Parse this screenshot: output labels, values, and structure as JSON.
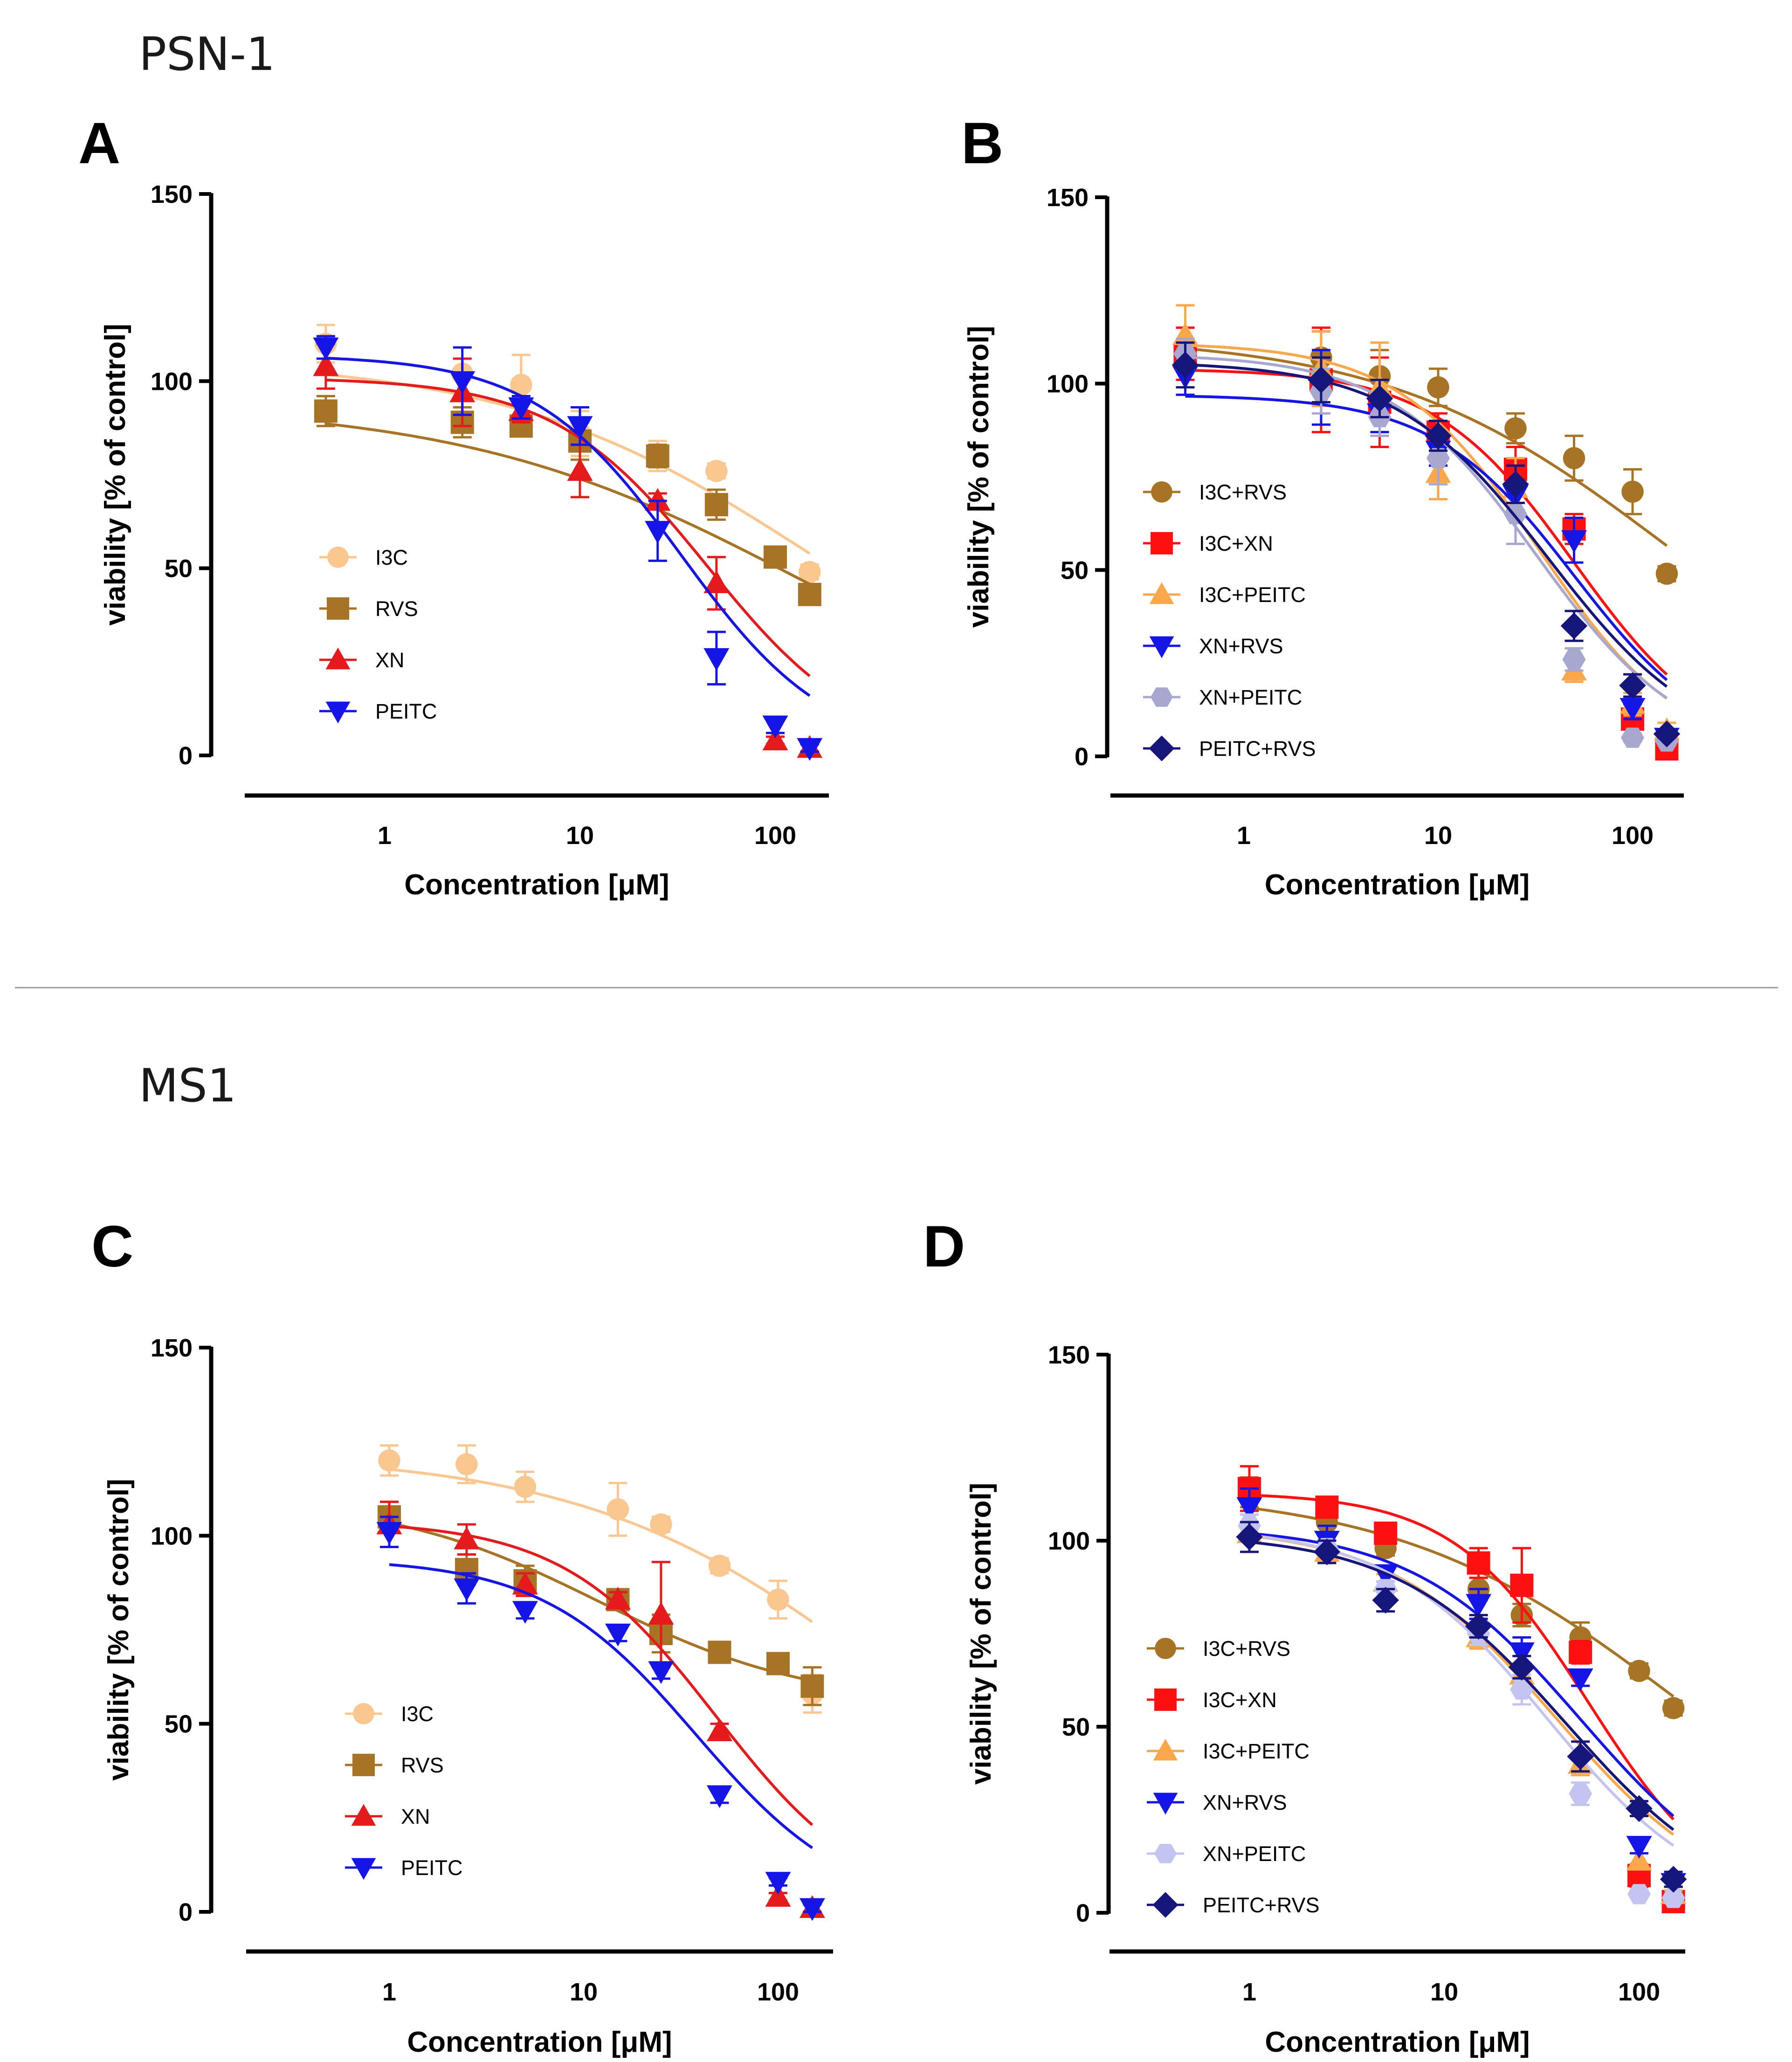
{
  "sections": [
    {
      "title": "PSN-1"
    },
    {
      "title": "MS1"
    }
  ],
  "chart_data": [
    {
      "panel": "A",
      "type": "line",
      "xscale": "log",
      "xlabel": "Concentration [μM]",
      "ylabel": "viability [% of control]",
      "ylim": [
        0,
        150
      ],
      "yticks": [
        0,
        50,
        100,
        150
      ],
      "xticks": [
        1,
        10,
        100
      ],
      "xtick_labels": [
        "1",
        "10",
        "100"
      ],
      "x": [
        0.5,
        2.5,
        5,
        10,
        25,
        50,
        100,
        150
      ],
      "legend_position": "bottom-left",
      "series": [
        {
          "name": "I3C",
          "color": "#F9C78F",
          "marker": "circle",
          "values": [
            110,
            102,
            99,
            86,
            80,
            76,
            53,
            49
          ],
          "errors": [
            5,
            7,
            8,
            6,
            4,
            2,
            2,
            2
          ],
          "fit": {
            "top": 106,
            "bottom": 0,
            "ic50": 160,
            "hill": 0.55
          }
        },
        {
          "name": "RVS",
          "color": "#A77426",
          "marker": "square",
          "values": [
            92,
            89,
            88,
            84,
            80,
            67,
            53,
            43
          ],
          "errors": [
            4,
            4,
            2,
            5,
            3,
            4,
            2,
            2
          ],
          "fit": {
            "top": 94,
            "bottom": 0,
            "ic50": 135,
            "hill": 0.5
          }
        },
        {
          "name": "XN",
          "color": "#E41A1C",
          "marker": "triangle-up",
          "values": [
            104,
            97,
            92,
            76,
            68,
            46,
            4,
            2
          ],
          "errors": [
            6,
            9,
            3,
            7,
            2,
            7,
            1,
            1
          ],
          "fit": {
            "top": 101,
            "bottom": 0,
            "ic50": 45,
            "hill": 1.1
          }
        },
        {
          "name": "PEITC",
          "color": "#1515E5",
          "marker": "triangle-down",
          "values": [
            109,
            100,
            93,
            88,
            60,
            26,
            8,
            2
          ],
          "errors": [
            3,
            9,
            3,
            5,
            8,
            7,
            2,
            1
          ],
          "fit": {
            "top": 107,
            "bottom": 0,
            "ic50": 33,
            "hill": 1.15
          }
        }
      ]
    },
    {
      "panel": "B",
      "type": "line",
      "xscale": "log",
      "xlabel": "Concentration [μM]",
      "ylabel": "viability [% of control]",
      "ylim": [
        0,
        150
      ],
      "yticks": [
        0,
        50,
        100,
        150
      ],
      "xticks": [
        1,
        10,
        100
      ],
      "xtick_labels": [
        "1",
        "10",
        "100"
      ],
      "x": [
        0.5,
        2.5,
        5,
        10,
        25,
        50,
        100,
        150
      ],
      "legend_position": "middle-left",
      "series": [
        {
          "name": "I3C+RVS",
          "color": "#A77426",
          "marker": "circle",
          "values": [
            110,
            107,
            102,
            99,
            88,
            80,
            71,
            49
          ],
          "errors": [
            5,
            7,
            7,
            5,
            4,
            6,
            6,
            2
          ],
          "fit": {
            "top": 113,
            "bottom": 0,
            "ic50": 150,
            "hill": 0.6
          }
        },
        {
          "name": "I3C+XN",
          "color": "#FF1111",
          "marker": "square",
          "values": [
            108,
            101,
            95,
            87,
            77,
            61,
            10,
            2
          ],
          "errors": [
            7,
            14,
            12,
            5,
            6,
            4,
            4,
            1
          ],
          "fit": {
            "top": 104,
            "bottom": 0,
            "ic50": 50,
            "hill": 1.2
          }
        },
        {
          "name": "I3C+PEITC",
          "color": "#FBA84C",
          "marker": "triangle-up",
          "values": [
            113,
            104,
            99,
            76,
            72,
            23,
            14,
            7
          ],
          "errors": [
            8,
            10,
            12,
            7,
            8,
            3,
            3,
            2
          ],
          "fit": {
            "top": 111,
            "bottom": 0,
            "ic50": 33,
            "hill": 1.2
          }
        },
        {
          "name": "XN+RVS",
          "color": "#1515E5",
          "marker": "triangle-down",
          "values": [
            102,
            99,
            92,
            82,
            70,
            58,
            13,
            5
          ],
          "errors": [
            5,
            10,
            5,
            4,
            4,
            6,
            3,
            1
          ],
          "fit": {
            "top": 97,
            "bottom": 0,
            "ic50": 50,
            "hill": 1.2
          }
        },
        {
          "name": "XN+PEITC",
          "color": "#A7A7D0",
          "marker": "hexagon",
          "values": [
            108,
            98,
            91,
            80,
            65,
            26,
            5,
            4
          ],
          "errors": [
            4,
            6,
            5,
            7,
            8,
            3,
            1,
            1
          ],
          "fit": {
            "top": 108,
            "bottom": 0,
            "ic50": 32,
            "hill": 1.15
          }
        },
        {
          "name": "PEITC+RVS",
          "color": "#15157A",
          "marker": "diamond",
          "values": [
            105,
            101,
            96,
            86,
            73,
            35,
            19,
            6
          ],
          "errors": [
            6,
            6,
            5,
            4,
            5,
            4,
            3,
            1
          ],
          "fit": {
            "top": 106,
            "bottom": 0,
            "ic50": 37,
            "hill": 1.1
          }
        }
      ]
    },
    {
      "panel": "C",
      "type": "line",
      "xscale": "log",
      "xlabel": "Concentration [μM]",
      "ylabel": "viability [% of control]",
      "ylim": [
        0,
        150
      ],
      "yticks": [
        0,
        50,
        100,
        150
      ],
      "xticks": [
        1,
        10,
        100
      ],
      "xtick_labels": [
        "1",
        "10",
        "100"
      ],
      "x": [
        1,
        2.5,
        5,
        15,
        25,
        50,
        100,
        150
      ],
      "legend_position": "bottom-left",
      "series": [
        {
          "name": "I3C",
          "color": "#F9C78F",
          "marker": "circle",
          "values": [
            120,
            119,
            113,
            107,
            103,
            92,
            83,
            58
          ],
          "errors": [
            4,
            5,
            4,
            7,
            2,
            2,
            5,
            5
          ],
          "fit": {
            "top": 122,
            "bottom": 0,
            "ic50": 400,
            "hill": 0.55
          }
        },
        {
          "name": "RVS",
          "color": "#A77426",
          "marker": "square",
          "values": [
            105,
            91,
            88,
            83,
            74,
            69,
            66,
            60
          ],
          "errors": [
            4,
            4,
            4,
            2,
            5,
            2,
            2,
            5
          ],
          "fit": {
            "top": 110,
            "bottom": 55,
            "ic50": 12,
            "hill": 0.8
          }
        },
        {
          "name": "XN",
          "color": "#E41A1C",
          "marker": "triangle-up",
          "values": [
            103,
            99,
            87,
            83,
            79,
            48,
            4,
            1
          ],
          "errors": [
            6,
            4,
            3,
            2,
            14,
            2,
            1,
            1
          ],
          "fit": {
            "top": 104,
            "bottom": 0,
            "ic50": 48,
            "hill": 1.1
          }
        },
        {
          "name": "PEITC",
          "color": "#1515E5",
          "marker": "triangle-down",
          "values": [
            101,
            86,
            80,
            74,
            64,
            31,
            8,
            1
          ],
          "errors": [
            4,
            4,
            2,
            2,
            2,
            2,
            1,
            1
          ],
          "fit": {
            "top": 94,
            "bottom": 0,
            "ic50": 38,
            "hill": 1.1
          }
        }
      ]
    },
    {
      "panel": "D",
      "type": "line",
      "xscale": "log",
      "xlabel": "Concentration [μM]",
      "ylabel": "viability [% of control]",
      "ylim": [
        0,
        150
      ],
      "yticks": [
        0,
        50,
        100,
        150
      ],
      "xticks": [
        1,
        10,
        100
      ],
      "xtick_labels": [
        "1",
        "10",
        "100"
      ],
      "x": [
        1,
        2.5,
        5,
        15,
        25,
        50,
        100,
        150
      ],
      "legend_position": "middle-left",
      "series": [
        {
          "name": "I3C+RVS",
          "color": "#A77426",
          "marker": "circle",
          "values": [
            113,
            105,
            98,
            87,
            80,
            74,
            65,
            55
          ],
          "errors": [
            4,
            3,
            2,
            3,
            3,
            4,
            2,
            2
          ],
          "fit": {
            "top": 114,
            "bottom": 0,
            "ic50": 160,
            "hill": 0.6
          }
        },
        {
          "name": "I3C+XN",
          "color": "#FF1111",
          "marker": "square",
          "values": [
            114,
            109,
            102,
            94,
            88,
            70,
            10,
            3
          ],
          "errors": [
            6,
            2,
            2,
            4,
            10,
            3,
            3,
            1
          ],
          "fit": {
            "top": 113,
            "bottom": 0,
            "ic50": 55,
            "hill": 1.25
          }
        },
        {
          "name": "I3C+PEITC",
          "color": "#FBA84C",
          "marker": "triangle-up",
          "values": [
            102,
            97,
            89,
            74,
            64,
            40,
            14,
            5
          ],
          "errors": [
            5,
            3,
            2,
            3,
            3,
            3,
            2,
            1
          ],
          "fit": {
            "top": 104,
            "bottom": 0,
            "ic50": 38,
            "hill": 1.0
          }
        },
        {
          "name": "XN+RVS",
          "color": "#1515E5",
          "marker": "triangle-down",
          "values": [
            109,
            100,
            91,
            83,
            70,
            63,
            18,
            8
          ],
          "errors": [
            5,
            4,
            2,
            4,
            4,
            2,
            2,
            1
          ],
          "fit": {
            "top": 104,
            "bottom": 0,
            "ic50": 50,
            "hill": 1.0
          }
        },
        {
          "name": "XN+PEITC",
          "color": "#C4C4F0",
          "marker": "hexagon",
          "values": [
            104,
            98,
            87,
            75,
            60,
            32,
            5,
            4
          ],
          "errors": [
            3,
            2,
            2,
            3,
            4,
            3,
            1,
            1
          ],
          "fit": {
            "top": 104,
            "bottom": 0,
            "ic50": 34,
            "hill": 1.05
          }
        },
        {
          "name": "PEITC+RVS",
          "color": "#15157A",
          "marker": "diamond",
          "values": [
            101,
            97,
            84,
            77,
            66,
            42,
            28,
            9
          ],
          "errors": [
            4,
            3,
            3,
            3,
            3,
            4,
            2,
            2
          ],
          "fit": {
            "top": 102,
            "bottom": 0,
            "ic50": 42,
            "hill": 1.0
          }
        }
      ]
    }
  ]
}
